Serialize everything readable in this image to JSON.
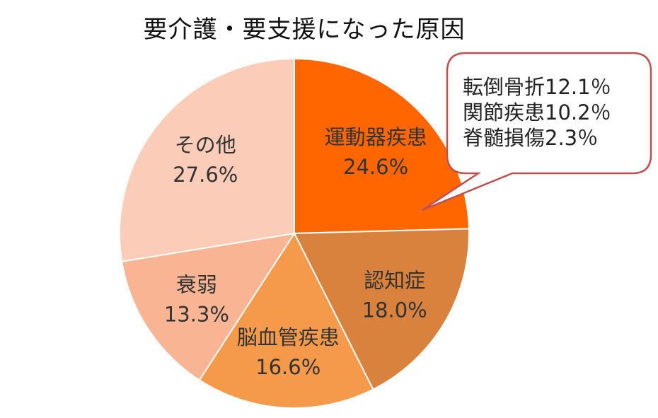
{
  "chart_data": {
    "type": "pie",
    "title": "要介護・要支援になった原因",
    "slices": [
      {
        "label": "運動器疾患",
        "value": 24.6,
        "value_label": "24.6%",
        "color": "#FF6600"
      },
      {
        "label": "認知症",
        "value": 18.0,
        "value_label": "18.0%",
        "color": "#D9823E"
      },
      {
        "label": "脳血管疾患",
        "value": 16.6,
        "value_label": "16.6%",
        "color": "#F59A4A"
      },
      {
        "label": "衰弱",
        "value": 13.3,
        "value_label": "13.3%",
        "color": "#F9B593"
      },
      {
        "label": "その他",
        "value": 27.6,
        "value_label": "27.6%",
        "color": "#FBCDB8"
      }
    ],
    "callout": {
      "target": "運動器疾患",
      "lines": [
        "転倒骨折12.1％",
        "関節疾患10.2％",
        "脊髄損傷2.3％"
      ],
      "border_color": "#C0504D"
    }
  }
}
